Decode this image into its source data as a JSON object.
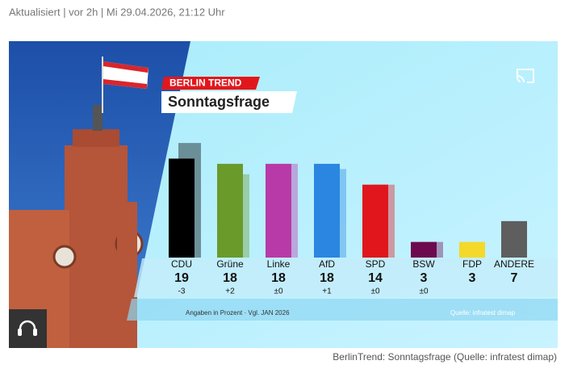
{
  "header": {
    "meta": "Aktualisiert | vor 2h | Mi 29.04.2026, 21:12 Uhr"
  },
  "caption": "BerlinTrend: Sonntagsfrage (Quelle: infratest dimap)",
  "chart_data": {
    "type": "bar",
    "badge": "BERLIN TREND",
    "title": "Sonntagsfrage",
    "categories": [
      "CDU",
      "Grüne",
      "Linke",
      "AfD",
      "SPD",
      "BSW",
      "FDP",
      "ANDERE"
    ],
    "values": [
      19,
      18,
      18,
      18,
      14,
      3,
      3,
      7
    ],
    "changes": [
      -3,
      2,
      0,
      1,
      0,
      0,
      null,
      null
    ],
    "change_labels": [
      "-3",
      "+2",
      "±0",
      "+1",
      "±0",
      "±0",
      null,
      null
    ],
    "colors": [
      "#000000",
      "#6a9a2a",
      "#b83aa8",
      "#2a86e0",
      "#e0161c",
      "#6d0a4f",
      "#f4d82a",
      "#5e5e5e"
    ],
    "note": "Angaben in Prozent · Vgl. JAN 2026",
    "source": "Quelle: infratest dimap"
  }
}
